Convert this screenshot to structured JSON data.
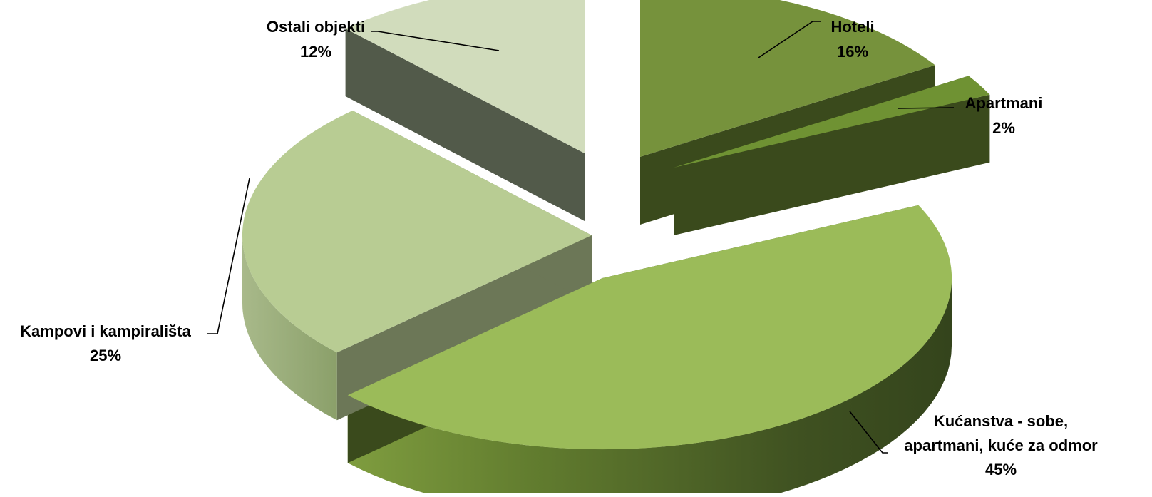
{
  "chart_data": {
    "type": "pie",
    "style": "3d-exploded",
    "title": "",
    "legend": "none",
    "slices": [
      {
        "label": "Hoteli",
        "value": 16,
        "display": "16%",
        "label_lines": [
          "Hoteli",
          "16%"
        ],
        "color": "#76923c"
      },
      {
        "label": "Apartmani",
        "value": 2,
        "display": "2%",
        "label_lines": [
          "Apartmani",
          "2%"
        ],
        "color": "#6f9233"
      },
      {
        "label": "Kućanstva - sobe, apartmani, kuće za odmor",
        "value": 45,
        "display": "45%",
        "label_lines": [
          "Kućanstva - sobe,",
          "apartmani, kuće za odmor",
          "45%"
        ],
        "color": "#9bbb59"
      },
      {
        "label": "Kampovi i kampirališta",
        "value": 25,
        "display": "25%",
        "label_lines": [
          "Kampovi i kampirališta",
          "25%"
        ],
        "color": "#b8cc93"
      },
      {
        "label": "Ostali objekti",
        "value": 12,
        "display": "12%",
        "label_lines": [
          "Ostali objekti",
          "12%"
        ],
        "color": "#d1dcbc"
      }
    ]
  }
}
